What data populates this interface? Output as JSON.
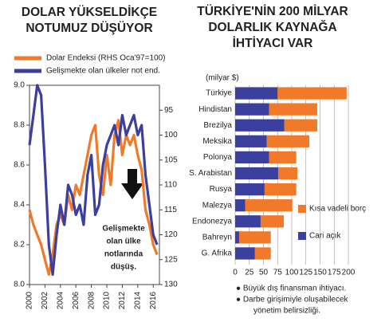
{
  "chart_data": [
    {
      "type": "line",
      "title": [
        "DOLAR YÜKSELDİKÇE",
        "NOTUMUZ DÜŞÜYOR"
      ],
      "annotation": [
        "Gelişmekte",
        "olan ülke",
        "notlarında",
        "düşüş."
      ],
      "x": [
        2000,
        2000.5,
        2001,
        2001.5,
        2002,
        2002.5,
        2003,
        2003.5,
        2004,
        2004.5,
        2005,
        2005.5,
        2006,
        2006.5,
        2007,
        2007.5,
        2008,
        2008.5,
        2009,
        2009.5,
        2010,
        2010.5,
        2011,
        2011.5,
        2012,
        2012.5,
        2013,
        2013.5,
        2014,
        2014.5,
        2015,
        2015.5,
        2016,
        2016.5
      ],
      "series": [
        {
          "name": "Dolar Endeksi (RHS Oca'97=100)",
          "color": "#f07a2a",
          "axis": "y2",
          "values": [
            115,
            118,
            120,
            122,
            125,
            128,
            124,
            118,
            116,
            118,
            112,
            115,
            110,
            112,
            108,
            104,
            100,
            98,
            108,
            112,
            104,
            110,
            100,
            97,
            104,
            100,
            102,
            100,
            104,
            107,
            115,
            118,
            122,
            124
          ]
        },
        {
          "name": "Gelişmekte olan ülkeler not end.",
          "color": "#3b3f9e",
          "axis": "y",
          "values": [
            8.7,
            8.85,
            9.0,
            8.95,
            8.6,
            8.2,
            8.05,
            8.25,
            8.4,
            8.3,
            8.5,
            8.45,
            8.35,
            8.4,
            8.3,
            8.55,
            8.65,
            8.35,
            8.4,
            8.6,
            8.7,
            8.75,
            8.8,
            8.7,
            8.85,
            8.75,
            8.8,
            8.85,
            8.75,
            8.8,
            8.55,
            8.4,
            8.25,
            8.2
          ]
        }
      ],
      "xlim": [
        2000,
        2016.8
      ],
      "xticks": [
        2000,
        2002,
        2004,
        2006,
        2008,
        2010,
        2012,
        2014,
        2016
      ],
      "ylim": [
        8,
        9
      ],
      "yticks": [
        {
          "value": 8,
          "label": "8.0"
        },
        8.2,
        8.4,
        8.6,
        8.8,
        {
          "value": 9,
          "label": "9.0"
        }
      ],
      "y2lim": [
        90,
        130
      ],
      "y2_inverted": true,
      "y2ticks": [
        95,
        100,
        105,
        110,
        115,
        120,
        125,
        130
      ]
    },
    {
      "type": "bar",
      "orientation": "horizontal",
      "stacked": true,
      "title": [
        "TÜRKİYE'NİN 200 MİLYAR",
        "DOLARLIK KAYNAĞA",
        "İHTİYACI VAR"
      ],
      "unit_label": "(milyar $)",
      "categories": [
        "Türkiye",
        "Hindistan",
        "Brezilya",
        "Meksika",
        "Polonya",
        "S. Arabistan",
        "Rusya",
        "Malezya",
        "Endonezya",
        "Bahreyn",
        "G. Afrika"
      ],
      "series": [
        {
          "name": "Cari açık",
          "color": "#3b3f9e",
          "values": [
            75,
            60,
            87,
            56,
            60,
            76,
            52,
            18,
            45,
            7,
            35
          ]
        },
        {
          "name": "Kısa vadeli borç",
          "color": "#f07a2a",
          "values": [
            122,
            85,
            58,
            75,
            48,
            34,
            56,
            83,
            41,
            56,
            28
          ]
        }
      ],
      "xlim": [
        0,
        200
      ],
      "xticks": [
        0,
        25,
        50,
        75,
        100,
        125,
        150,
        175,
        200
      ],
      "grid": true,
      "notes": [
        "● Büyük dış finansman ihtiyacı.",
        "● Darbe girişimiyle oluşabilecek",
        "yönetim belirsizliği."
      ]
    }
  ]
}
